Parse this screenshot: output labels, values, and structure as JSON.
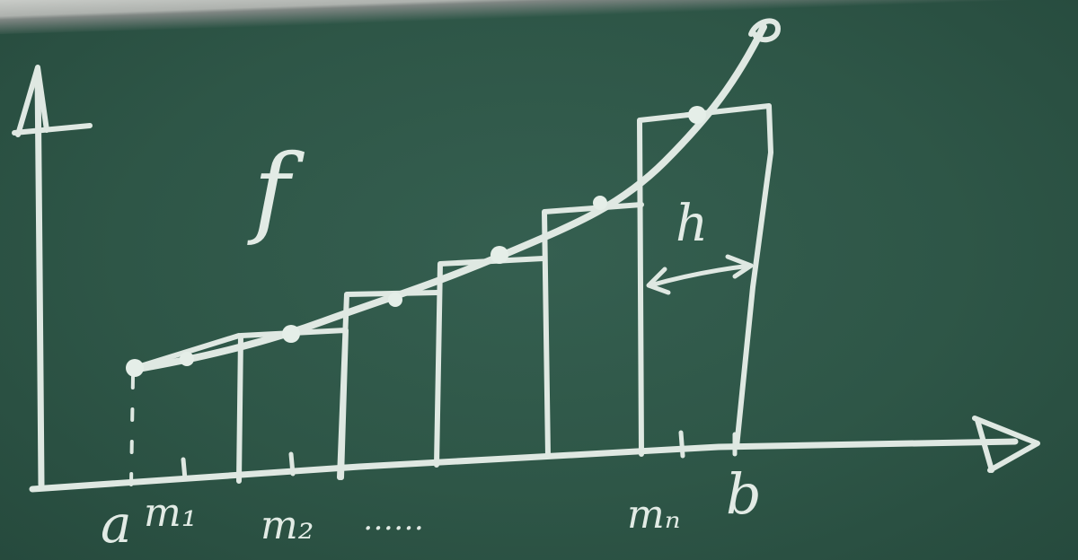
{
  "function_label": "f",
  "interval_start_label": "a",
  "interval_end_label": "b",
  "midpoint_labels": [
    "m₁",
    "m₂",
    "……",
    "mₙ"
  ],
  "width_label": "h",
  "colors": {
    "board": "#2e5647",
    "chalk": "#dfe8e2",
    "tray": "#aeb2ae"
  }
}
